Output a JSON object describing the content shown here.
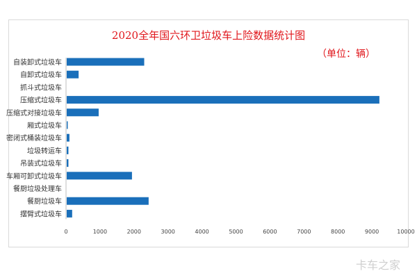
{
  "chart_data": {
    "type": "bar",
    "orientation": "horizontal",
    "title": "2020全年国六环卫垃圾车上险数据统计图",
    "unit": "（单位：辆）",
    "categories": [
      "自装卸式垃圾车",
      "自卸式垃圾车",
      "抓斗式垃圾车",
      "压缩式垃圾车",
      "压缩式对接垃圾车",
      "厢式垃圾车",
      "密闭式桶装垃圾车",
      "垃圾转运车",
      "吊装式垃圾车",
      "车厢可卸式垃圾车",
      "餐厨垃圾处理车",
      "餐厨垃圾车",
      "摆臂式垃圾车"
    ],
    "values": [
      2280,
      350,
      0,
      9200,
      940,
      30,
      80,
      50,
      50,
      1920,
      0,
      2410,
      160
    ],
    "xlim": [
      0,
      10000
    ],
    "xticks": [
      "0",
      "1000",
      "2000",
      "3000",
      "4000",
      "5000",
      "6000",
      "7000",
      "8000",
      "9000",
      "10000"
    ],
    "bar_color": "#1a6fba",
    "grid": false
  },
  "watermark": "卡车之家"
}
